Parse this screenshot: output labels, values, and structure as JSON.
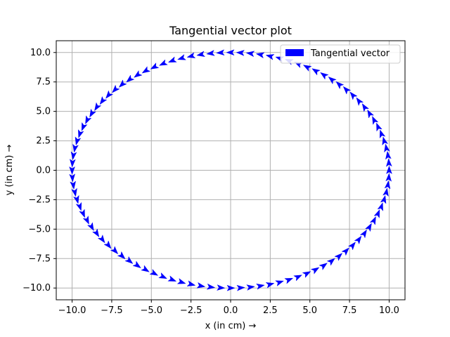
{
  "chart_data": {
    "type": "quiver",
    "title": "Tangential vector plot",
    "xlabel": "x (in cm) →",
    "ylabel": "y (in cm) →",
    "xlim": [
      -11.0,
      11.0
    ],
    "ylim": [
      -11.0,
      11.0
    ],
    "grid": true,
    "legend": {
      "position": "top-right",
      "entries": [
        "Tangential vector"
      ]
    },
    "series": [
      {
        "name": "Tangential vector",
        "color": "#0000ff",
        "marker": "arrow",
        "curve": "circle",
        "center": [
          0,
          0
        ],
        "radius": 10,
        "count": 100,
        "direction": "counterclockwise"
      }
    ],
    "xticks": [
      "−10.0",
      "−7.5",
      "−5.0",
      "−2.5",
      "0.0",
      "2.5",
      "5.0",
      "7.5",
      "10.0"
    ],
    "yticks": [
      "−10.0",
      "−7.5",
      "−5.0",
      "−2.5",
      "0.0",
      "2.5",
      "5.0",
      "7.5",
      "10.0"
    ],
    "xtick_values": [
      -10.0,
      -7.5,
      -5.0,
      -2.5,
      0.0,
      2.5,
      5.0,
      7.5,
      10.0
    ],
    "ytick_values": [
      -10.0,
      -7.5,
      -5.0,
      -2.5,
      0.0,
      2.5,
      5.0,
      7.5,
      10.0
    ]
  }
}
